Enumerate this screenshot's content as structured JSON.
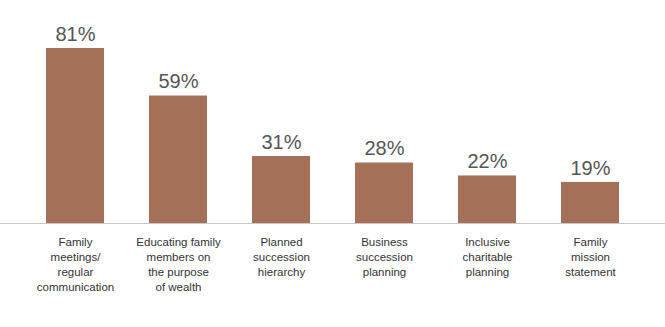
{
  "chart_data": {
    "type": "bar",
    "categories": [
      "Family\nmeetings/\nregular\ncommunication",
      "Educating family\nmembers on\nthe purpose\nof wealth",
      "Planned\nsuccession\nhierarchy",
      "Business\nsuccession\nplanning",
      "Inclusive\ncharitable\nplanning",
      "Family\nmission\nstatement"
    ],
    "values": [
      81,
      59,
      31,
      28,
      22,
      19
    ],
    "value_labels": [
      "81%",
      "59%",
      "31%",
      "28%",
      "22%",
      "19%"
    ],
    "color": "#a47058",
    "ylim": [
      0,
      81
    ],
    "grid": false,
    "data_labels": true,
    "tick_labels": "x"
  }
}
